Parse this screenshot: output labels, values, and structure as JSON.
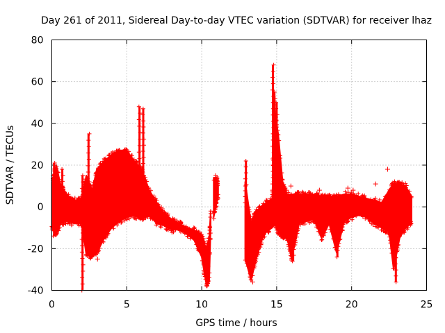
{
  "chart_data": {
    "type": "scatter",
    "title": "Day 261 of 2011, Sidereal Day-to-day VTEC variation (SDTVAR) for receiver lhaz",
    "xlabel": "GPS time / hours",
    "ylabel": "SDTVAR / TECUs",
    "xlim": [
      0,
      25
    ],
    "ylim": [
      -40,
      80
    ],
    "xticks": [
      "0",
      "5",
      "10",
      "15",
      "20",
      "25"
    ],
    "yticks": [
      "-40",
      "-20",
      "0",
      "20",
      "40",
      "60",
      "80"
    ],
    "grid": true,
    "marker": "+",
    "color": "#ff0000",
    "series": [
      {
        "name": "SDTVAR",
        "band": [
          {
            "x": 0.0,
            "lo": -10,
            "hi": 12
          },
          {
            "x": 0.3,
            "lo": -13,
            "hi": 20
          },
          {
            "x": 0.6,
            "lo": -8,
            "hi": 10
          },
          {
            "x": 1.0,
            "lo": -7,
            "hi": 6
          },
          {
            "x": 1.5,
            "lo": -8,
            "hi": 3
          },
          {
            "x": 2.0,
            "lo": -8,
            "hi": 4
          },
          {
            "x": 2.3,
            "lo": -23,
            "hi": 15
          },
          {
            "x": 2.7,
            "lo": -24,
            "hi": 8
          },
          {
            "x": 3.0,
            "lo": -22,
            "hi": 18
          },
          {
            "x": 3.5,
            "lo": -15,
            "hi": 22
          },
          {
            "x": 4.0,
            "lo": -10,
            "hi": 25
          },
          {
            "x": 4.5,
            "lo": -7,
            "hi": 27
          },
          {
            "x": 5.0,
            "lo": -5,
            "hi": 27
          },
          {
            "x": 5.5,
            "lo": -4,
            "hi": 22
          },
          {
            "x": 6.0,
            "lo": -6,
            "hi": 18
          },
          {
            "x": 6.5,
            "lo": -4,
            "hi": 8
          },
          {
            "x": 7.0,
            "lo": -8,
            "hi": 2
          },
          {
            "x": 7.5,
            "lo": -9,
            "hi": -3
          },
          {
            "x": 8.0,
            "lo": -11,
            "hi": -6
          },
          {
            "x": 8.5,
            "lo": -11,
            "hi": -8
          },
          {
            "x": 9.0,
            "lo": -13,
            "hi": -10
          },
          {
            "x": 9.5,
            "lo": -16,
            "hi": -11
          },
          {
            "x": 10.0,
            "lo": -24,
            "hi": -14
          },
          {
            "x": 10.3,
            "lo": -37,
            "hi": -20
          },
          {
            "x": 10.5,
            "lo": -36,
            "hi": -15
          },
          {
            "x": 10.6,
            "lo": -10,
            "hi": -2
          }
        ]
      },
      {
        "name": "SDTVAR",
        "band": [
          {
            "x": 10.8,
            "lo": -5,
            "hi": 14
          },
          {
            "x": 11.0,
            "lo": 2,
            "hi": 14
          },
          {
            "x": 11.1,
            "lo": 5,
            "hi": 10
          }
        ]
      },
      {
        "name": "SDTVAR",
        "band": [
          {
            "x": 12.9,
            "lo": -25,
            "hi": 12
          },
          {
            "x": 13.3,
            "lo": -35,
            "hi": -8
          },
          {
            "x": 13.6,
            "lo": -26,
            "hi": -2
          },
          {
            "x": 14.0,
            "lo": -16,
            "hi": 0
          },
          {
            "x": 14.3,
            "lo": -12,
            "hi": 2
          },
          {
            "x": 14.7,
            "lo": -10,
            "hi": 4
          },
          {
            "x": 14.9,
            "lo": -8,
            "hi": 45
          },
          {
            "x": 15.1,
            "lo": -12,
            "hi": 35
          },
          {
            "x": 15.4,
            "lo": -14,
            "hi": 12
          },
          {
            "x": 15.7,
            "lo": -15,
            "hi": 6
          },
          {
            "x": 16.0,
            "lo": -25,
            "hi": 6
          },
          {
            "x": 16.5,
            "lo": -8,
            "hi": 6
          },
          {
            "x": 17.0,
            "lo": -7,
            "hi": 6
          },
          {
            "x": 17.5,
            "lo": -6,
            "hi": 6
          },
          {
            "x": 18.0,
            "lo": -15,
            "hi": 5
          },
          {
            "x": 18.5,
            "lo": -8,
            "hi": 5
          },
          {
            "x": 19.0,
            "lo": -22,
            "hi": 5
          },
          {
            "x": 19.5,
            "lo": -7,
            "hi": 6
          },
          {
            "x": 20.0,
            "lo": -5,
            "hi": 6
          },
          {
            "x": 20.5,
            "lo": -4,
            "hi": 5
          },
          {
            "x": 21.0,
            "lo": -5,
            "hi": 4
          },
          {
            "x": 21.5,
            "lo": -8,
            "hi": 3
          },
          {
            "x": 22.0,
            "lo": -10,
            "hi": 2
          },
          {
            "x": 22.5,
            "lo": -12,
            "hi": 8
          },
          {
            "x": 22.8,
            "lo": -30,
            "hi": 11
          },
          {
            "x": 23.2,
            "lo": -15,
            "hi": 11
          },
          {
            "x": 23.6,
            "lo": -10,
            "hi": 10
          },
          {
            "x": 24.0,
            "lo": -8,
            "hi": 5
          }
        ]
      }
    ],
    "spikes": [
      {
        "x": 0.15,
        "lo": -14,
        "hi": 21
      },
      {
        "x": 0.7,
        "lo": -8,
        "hi": 18
      },
      {
        "x": 2.05,
        "lo": -40,
        "hi": 15
      },
      {
        "x": 2.45,
        "lo": -20,
        "hi": 35
      },
      {
        "x": 5.85,
        "lo": 20,
        "hi": 48
      },
      {
        "x": 6.1,
        "lo": 15,
        "hi": 47
      },
      {
        "x": 10.4,
        "lo": -38,
        "hi": -22
      },
      {
        "x": 12.95,
        "lo": 2,
        "hi": 22
      },
      {
        "x": 14.75,
        "lo": -4,
        "hi": 68
      },
      {
        "x": 14.85,
        "lo": 0,
        "hi": 55
      },
      {
        "x": 15.0,
        "lo": 0,
        "hi": 50
      },
      {
        "x": 16.1,
        "lo": -26,
        "hi": -12
      },
      {
        "x": 19.05,
        "lo": -24,
        "hi": -8
      },
      {
        "x": 22.95,
        "lo": -36,
        "hi": -10
      }
    ],
    "outliers": [
      {
        "x": 15.95,
        "y": 10
      },
      {
        "x": 17.85,
        "y": 8
      },
      {
        "x": 19.75,
        "y": 9
      },
      {
        "x": 20.1,
        "y": 8
      },
      {
        "x": 21.6,
        "y": 11
      },
      {
        "x": 22.4,
        "y": 18
      },
      {
        "x": 22.6,
        "y": -16
      },
      {
        "x": 0.5,
        "y": -10
      },
      {
        "x": 3.05,
        "y": -25
      },
      {
        "x": 13.4,
        "y": -36
      }
    ]
  }
}
